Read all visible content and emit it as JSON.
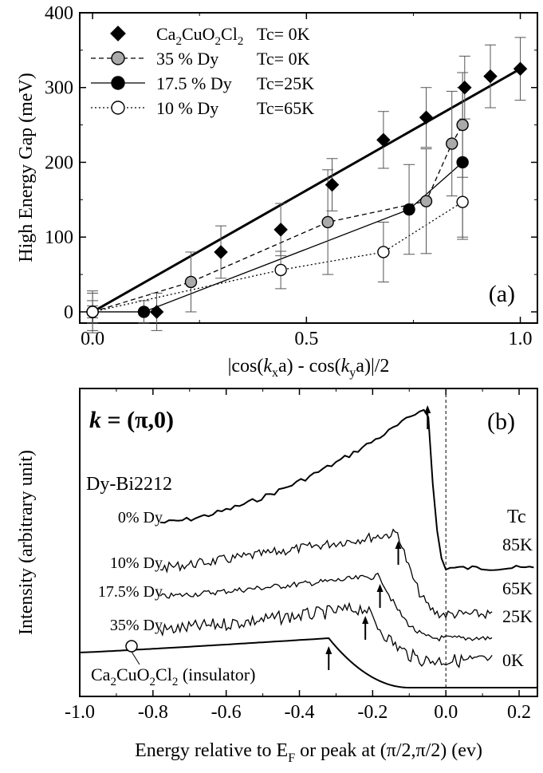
{
  "chart_data": [
    {
      "type": "scatter",
      "panel_label": "(a)",
      "xlabel": "|cos(kxa) - cos(kya)|/2",
      "ylabel": "High Energy Gap (meV)",
      "xlim": [
        -0.03,
        1.04
      ],
      "ylim": [
        -15,
        400
      ],
      "xticks": [
        0.0,
        0.5,
        1.0
      ],
      "xtick_labels": [
        "0.0",
        "0.5",
        "1.0"
      ],
      "yticks": [
        0,
        100,
        200,
        300,
        400
      ],
      "ytick_labels": [
        "0",
        "100",
        "200",
        "300",
        "400"
      ],
      "series": [
        {
          "name": "Ca2CuO2Cl2",
          "tc_label": "Tc=  0K",
          "marker": "diamond",
          "fill": "#000000",
          "fit_line": {
            "x": [
              0.0,
              1.0
            ],
            "y": [
              0,
              325
            ],
            "dash": "solid"
          },
          "x": [
            0.0,
            0.15,
            0.3,
            0.44,
            0.56,
            0.68,
            0.78,
            0.87,
            0.93,
            1.0
          ],
          "y": [
            0,
            0,
            80,
            110,
            170,
            230,
            260,
            300,
            315,
            325
          ],
          "err": [
            25,
            25,
            35,
            35,
            35,
            38,
            40,
            42,
            42,
            42
          ]
        },
        {
          "name": "35 % Dy",
          "tc_label": "Tc=  0K",
          "marker": "circle",
          "fill": "#aaaaaa",
          "line_dash": "6,4",
          "x": [
            0.0,
            0.23,
            0.55,
            0.78,
            0.84,
            0.865
          ],
          "y": [
            0,
            40,
            120,
            148,
            225,
            250
          ],
          "err": [
            28,
            40,
            70,
            70,
            70,
            70
          ]
        },
        {
          "name": "17.5 % Dy",
          "tc_label": "Tc=25K",
          "marker": "circle",
          "fill": "#000000",
          "line_dash": "",
          "x": [
            0.0,
            0.12,
            0.74,
            0.865
          ],
          "y": [
            0,
            0,
            137,
            200
          ],
          "err": [
            15,
            15,
            60,
            100
          ]
        },
        {
          "name": "10 % Dy",
          "tc_label": "Tc=65K",
          "marker": "circle",
          "fill": "#ffffff",
          "line_dash": "2,3",
          "x": [
            0.0,
            0.44,
            0.68,
            0.865
          ],
          "y": [
            0,
            56,
            80,
            147
          ],
          "err": [
            8,
            25,
            40,
            50
          ]
        }
      ]
    },
    {
      "type": "line",
      "panel_label": "(b)",
      "k_label": "k = (π,0)",
      "sample_label": "Dy-Bi2212",
      "tc_header": "Tc",
      "xlabel": "Energy relative to E",
      "xlabel_sub": "F",
      "xlabel_tail": " or peak at (π/2,π/2)   (ev)",
      "ylabel": "Intensity (arbitrary unit)",
      "xlim": [
        -1.0,
        0.25
      ],
      "xticks": [
        -1.0,
        -0.8,
        -0.6,
        -0.4,
        -0.2,
        0.0,
        0.2
      ],
      "xtick_labels": [
        "-1.0",
        "-0.8",
        "-0.6",
        "-0.4",
        "-0.2",
        "0.0",
        "0.2"
      ],
      "fermi_level": 0.0,
      "insulator_label": "Ca2CuO2Cl2 (insulator)",
      "spectra": [
        {
          "name": "0% Dy",
          "tc": "85K",
          "x_start": -0.78,
          "x_end": 0.24,
          "peak": -0.05,
          "noise": 0.25
        },
        {
          "name": "10% Dy",
          "tc": "65K",
          "x_start": -0.78,
          "x_end": 0.13,
          "peak": -0.13,
          "noise": 0.5
        },
        {
          "name": "17.5% Dy",
          "tc": "25K",
          "x_start": -0.78,
          "x_end": 0.13,
          "peak": -0.18,
          "noise": 0.3
        },
        {
          "name": "35% Dy",
          "tc": "0K",
          "x_start": -0.78,
          "x_end": 0.13,
          "peak": -0.22,
          "noise": 0.7
        },
        {
          "name": "Ca2CuO2Cl2",
          "tc": "",
          "x_start": -1.0,
          "x_end": 0.25,
          "peak": -0.32,
          "noise": 0.0
        }
      ]
    }
  ]
}
